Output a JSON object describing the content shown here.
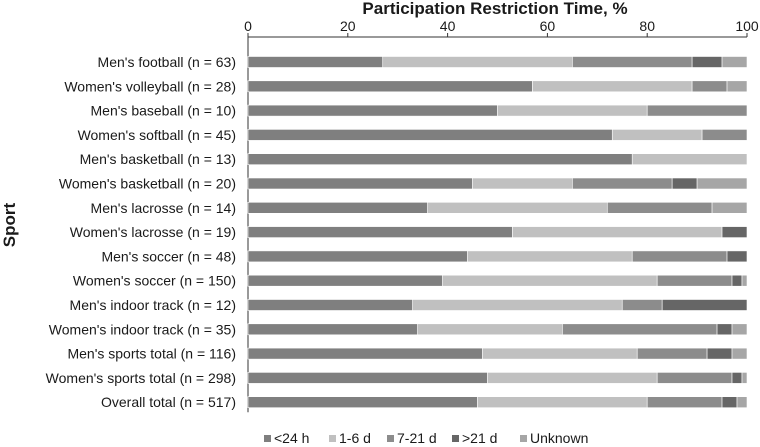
{
  "chart_data": {
    "type": "bar",
    "orientation": "horizontal",
    "stacked": true,
    "title": "Participation Restriction Time, %",
    "xlabel": "Participation Restriction Time, %",
    "ylabel": "Sport",
    "xlim": [
      0,
      100
    ],
    "xticks": [
      "0",
      "20",
      "40",
      "60",
      "80",
      "100"
    ],
    "grid": false,
    "legend_position": "bottom",
    "categories": [
      "Men's football (n = 63)",
      "Women's volleyball (n = 28)",
      "Men's baseball (n = 10)",
      "Women's softball (n = 45)",
      "Men's basketball (n = 13)",
      "Women's basketball (n = 20)",
      "Men's lacrosse (n = 14)",
      "Women's lacrosse (n = 19)",
      "Men's soccer (n = 48)",
      "Women's soccer (n = 150)",
      "Men's indoor track (n = 12)",
      "Women's indoor track (n = 35)",
      "Men's sports total (n = 116)",
      "Women's sports total (n = 298)",
      "Overall total (n = 517)"
    ],
    "series": [
      {
        "name": "<24 h",
        "color": "#7f7f7f",
        "values": [
          27,
          57,
          50,
          73,
          77,
          45,
          36,
          53,
          44,
          39,
          33,
          34,
          47,
          48,
          46
        ]
      },
      {
        "name": "1-6 d",
        "color": "#c0c0c0",
        "values": [
          38,
          32,
          30,
          18,
          23,
          20,
          36,
          42,
          33,
          43,
          42,
          29,
          31,
          34,
          34
        ]
      },
      {
        "name": "7-21 d",
        "color": "#8c8c8c",
        "values": [
          24,
          7,
          20,
          9,
          0,
          20,
          21,
          0,
          19,
          15,
          8,
          31,
          14,
          15,
          15
        ]
      },
      {
        "name": ">21 d",
        "color": "#666666",
        "values": [
          6,
          0,
          0,
          0,
          0,
          5,
          0,
          5,
          4,
          2,
          17,
          3,
          5,
          2,
          3
        ]
      },
      {
        "name": "Unknown",
        "color": "#a6a6a6",
        "values": [
          5,
          4,
          0,
          0,
          0,
          10,
          7,
          0,
          0,
          1,
          0,
          3,
          3,
          1,
          2
        ]
      }
    ]
  }
}
